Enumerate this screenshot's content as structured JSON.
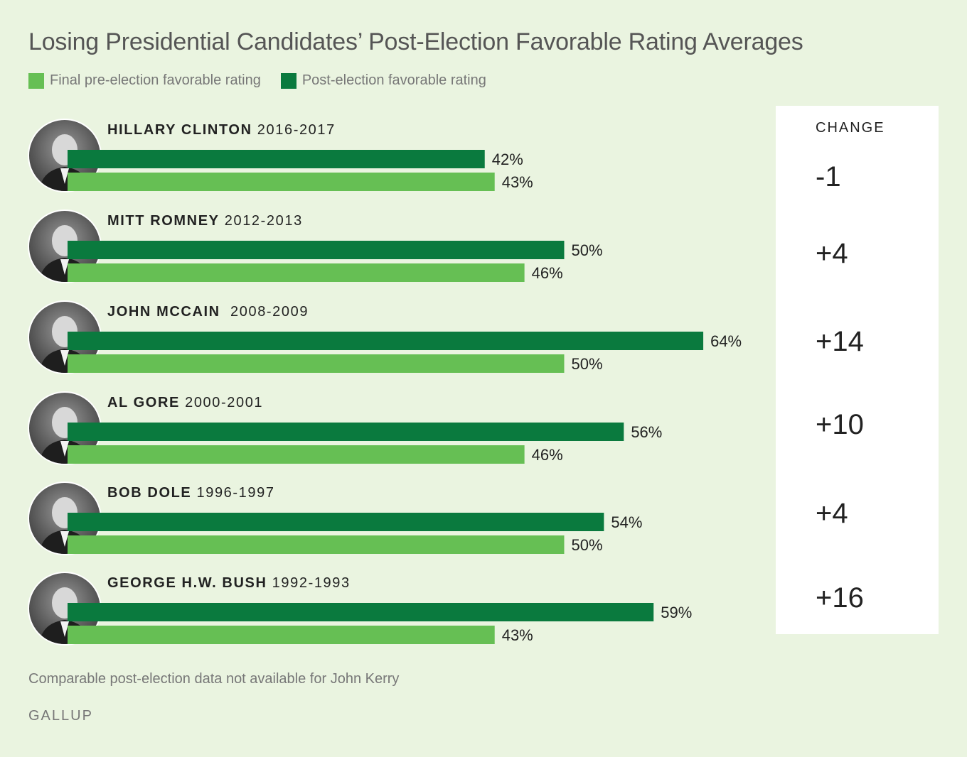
{
  "chart_data": {
    "type": "bar",
    "title": "Losing Presidential Candidates’ Post-Election Favorable Rating Averages",
    "orientation": "horizontal",
    "legend": [
      {
        "name": "Final pre-election favorable rating",
        "color": "#66bf54"
      },
      {
        "name": "Post-election favorable rating",
        "color": "#0a7a3e"
      }
    ],
    "change_header": "CHANGE",
    "candidates": [
      {
        "name": "HILLARY CLINTON",
        "years": "2016-2017",
        "post": 42,
        "post_label": "42%",
        "pre": 43,
        "pre_label": "43%",
        "change": "-1"
      },
      {
        "name": "MITT ROMNEY",
        "years": "2012-2013",
        "post": 50,
        "post_label": "50%",
        "pre": 46,
        "pre_label": "46%",
        "change": "+4"
      },
      {
        "name": "JOHN MCCAIN",
        "years": " 2008-2009",
        "post": 64,
        "post_label": "64%",
        "pre": 50,
        "pre_label": "50%",
        "change": "+14"
      },
      {
        "name": "AL GORE",
        "years": "2000-2001",
        "post": 56,
        "post_label": "56%",
        "pre": 46,
        "pre_label": "46%",
        "change": "+10"
      },
      {
        "name": "BOB DOLE",
        "years": "1996-1997",
        "post": 54,
        "post_label": "54%",
        "pre": 50,
        "pre_label": "50%",
        "change": "+4"
      },
      {
        "name": "GEORGE H.W. BUSH",
        "years": "1992-1993",
        "post": 59,
        "post_label": "59%",
        "pre": 43,
        "pre_label": "43%",
        "change": "+16"
      }
    ]
  },
  "footnote": "Comparable post-election data not available for John Kerry",
  "source": "GALLUP"
}
